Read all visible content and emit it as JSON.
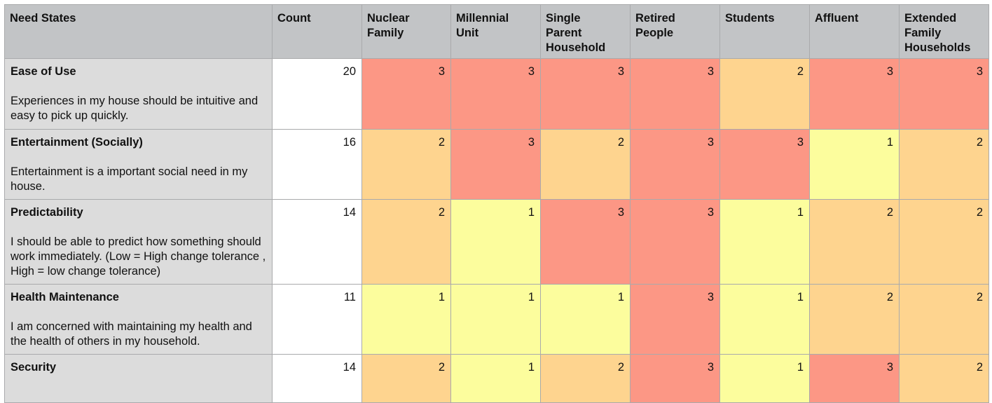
{
  "headers": {
    "need_states": "Need States",
    "count": "Count",
    "segments": [
      [
        "Nuclear",
        "Family"
      ],
      [
        "Millennial",
        "Unit"
      ],
      [
        "Single",
        "Parent",
        "Household"
      ],
      [
        "Retired",
        "People"
      ],
      [
        "Students"
      ],
      [
        "Affluent"
      ],
      [
        "Extended",
        "Family",
        "Households"
      ]
    ]
  },
  "rows": [
    {
      "title": "Ease of Use",
      "description": "Experiences in my house should be intuitive and easy to pick up quickly.",
      "count": "20",
      "scores": [
        "3",
        "3",
        "3",
        "3",
        "2",
        "3",
        "3"
      ]
    },
    {
      "title": "Entertainment (Socially)",
      "description": "Entertainment is a important social need in my house.",
      "count": "16",
      "scores": [
        "2",
        "3",
        "2",
        "3",
        "3",
        "1",
        "2"
      ]
    },
    {
      "title": "Predictability",
      "description": "I should be able to predict how something should work immediately. (Low  = High change tolerance , High = low change tolerance)",
      "count": "14",
      "scores": [
        "2",
        "1",
        "3",
        "3",
        "1",
        "2",
        "2"
      ]
    },
    {
      "title": "Health Maintenance",
      "description": "I am concerned with maintaining my health and the health of others in my household.",
      "count": "11",
      "scores": [
        "1",
        "1",
        "1",
        "3",
        "1",
        "2",
        "2"
      ]
    },
    {
      "title": "Security",
      "description": "",
      "count": "14",
      "scores": [
        "2",
        "1",
        "2",
        "3",
        "1",
        "3",
        "2"
      ]
    }
  ],
  "colors": {
    "header_bg": "#c2c4c6",
    "label_bg": "#dcdcdc",
    "score_3": "#fc9785",
    "score_2": "#fed48f",
    "score_1": "#fcfd9d",
    "grid_line": "#a9aaac"
  }
}
